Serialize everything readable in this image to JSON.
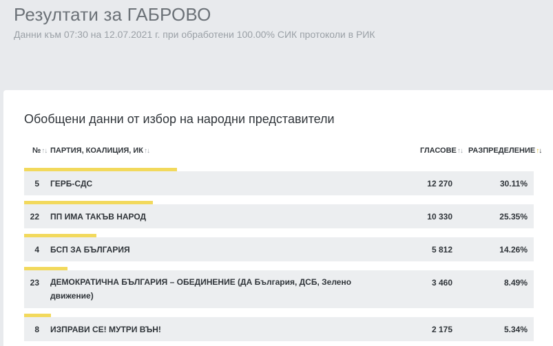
{
  "header": {
    "title": "Резултати за ГАБРОВО",
    "subtitle": "Данни към 07:30 на 12.07.2021 г. при обработени 100.00% СИК протоколи в РИК"
  },
  "section": {
    "title": "Обобщени данни от избор на народни представители"
  },
  "table": {
    "columns": {
      "number": "№",
      "party": "ПАРТИЯ, КОАЛИЦИЯ, ИК",
      "votes": "ГЛАСОВЕ",
      "share": "РАЗПРЕДЕЛЕНИЕ"
    },
    "sort_icon": "sort-arrows-icon",
    "bar_color": "#f2d95c",
    "rows": [
      {
        "number": "5",
        "name": "ГЕРБ-СДС",
        "votes": "12 270",
        "share": "30.11%",
        "share_value": 30.11
      },
      {
        "number": "22",
        "name": "ПП ИМА ТАКЪВ НАРОД",
        "votes": "10 330",
        "share": "25.35%",
        "share_value": 25.35
      },
      {
        "number": "4",
        "name": "БСП ЗА БЪЛГАРИЯ",
        "votes": "5 812",
        "share": "14.26%",
        "share_value": 14.26
      },
      {
        "number": "23",
        "name": "ДЕМОКРАТИЧНА БЪЛГАРИЯ – ОБЕДИНЕНИЕ (ДА България, ДСБ, Зелено движение)",
        "votes": "3 460",
        "share": "8.49%",
        "share_value": 8.49
      },
      {
        "number": "8",
        "name": "ИЗПРАВИ СЕ! МУТРИ ВЪН!",
        "votes": "2 175",
        "share": "5.34%",
        "share_value": 5.34
      }
    ]
  }
}
